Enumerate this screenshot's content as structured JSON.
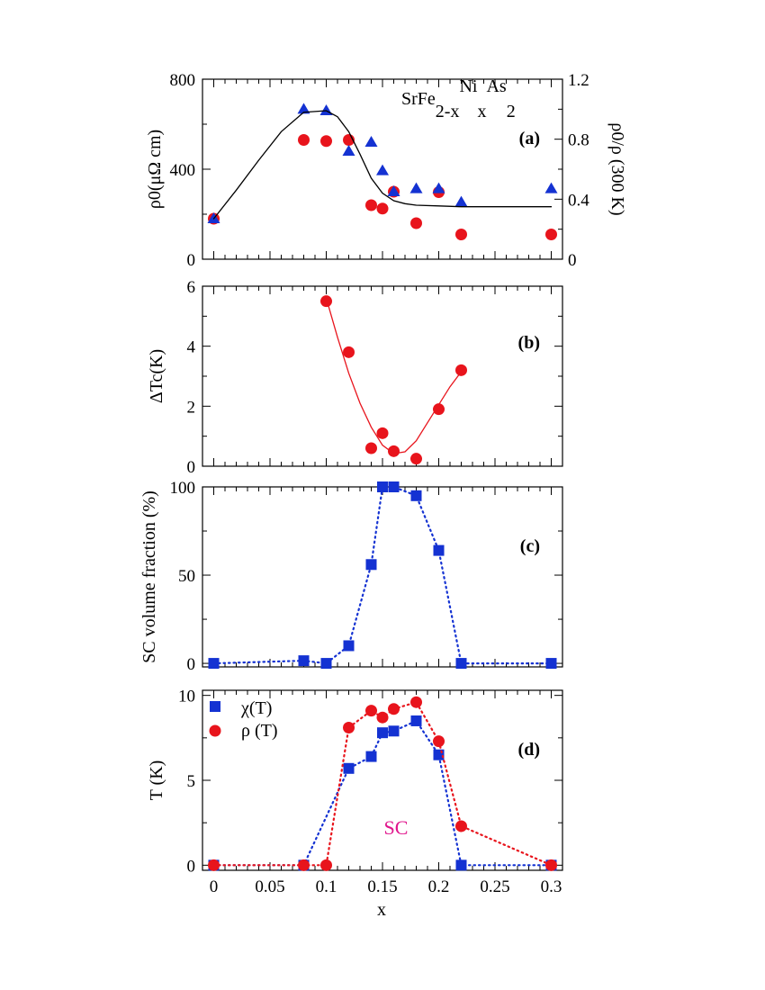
{
  "figure": {
    "formula": {
      "parts": [
        "SrFe",
        "2-x",
        "Ni",
        "x",
        "As",
        "2"
      ]
    },
    "xlabel": "x",
    "x_ticks": [
      "0",
      "0.05",
      "0.1",
      "0.15",
      "0.2",
      "0.25",
      "0.3"
    ]
  },
  "chart_data": [
    {
      "type": "scatter",
      "panel": "(a)",
      "ylabel": "ρ0(μΩ cm)",
      "ylabel_right": "ρ0/ρ (300 K)",
      "xlim": [
        -0.01,
        0.31
      ],
      "ylim": [
        0,
        800
      ],
      "ylim_right": [
        0,
        1.2
      ],
      "y_ticks": [
        "0",
        "400",
        "800"
      ],
      "y_ticks_right": [
        "0",
        "0.4",
        "0.8",
        "1.2"
      ],
      "series": [
        {
          "name": "ρ0",
          "axis": "left",
          "marker": "circle",
          "color": "#e8141c",
          "x": [
            0,
            0.08,
            0.1,
            0.12,
            0.14,
            0.15,
            0.16,
            0.18,
            0.2,
            0.22,
            0.3
          ],
          "y": [
            180,
            530,
            525,
            530,
            240,
            225,
            300,
            160,
            298,
            110,
            110
          ]
        },
        {
          "name": "ρ0/ρ (300 K)",
          "axis": "right",
          "marker": "triangle",
          "color": "#1432d2",
          "x": [
            0,
            0.08,
            0.1,
            0.12,
            0.14,
            0.15,
            0.16,
            0.18,
            0.2,
            0.22,
            0.3
          ],
          "y": [
            0.27,
            1.0,
            0.99,
            0.72,
            0.78,
            0.59,
            0.45,
            0.47,
            0.47,
            0.38,
            0.47
          ]
        },
        {
          "name": "guide",
          "axis": "right",
          "style": "line",
          "color": "#000000",
          "x": [
            0,
            0.02,
            0.04,
            0.06,
            0.08,
            0.1,
            0.11,
            0.12,
            0.13,
            0.14,
            0.15,
            0.16,
            0.17,
            0.18,
            0.2,
            0.22,
            0.25,
            0.3
          ],
          "y": [
            0.27,
            0.46,
            0.66,
            0.85,
            0.98,
            0.99,
            0.95,
            0.85,
            0.7,
            0.54,
            0.44,
            0.39,
            0.37,
            0.36,
            0.355,
            0.35,
            0.35,
            0.35
          ]
        }
      ]
    },
    {
      "type": "scatter",
      "panel": "(b)",
      "ylabel": "ΔTc(K)",
      "xlim": [
        -0.01,
        0.31
      ],
      "ylim": [
        0,
        6
      ],
      "y_ticks": [
        "0",
        "2",
        "4",
        "6"
      ],
      "series": [
        {
          "name": "ΔTc",
          "marker": "circle",
          "color": "#e8141c",
          "x": [
            0.1,
            0.12,
            0.14,
            0.15,
            0.16,
            0.18,
            0.2,
            0.22
          ],
          "y": [
            5.5,
            3.8,
            0.6,
            1.1,
            0.5,
            0.25,
            1.9,
            3.2
          ]
        },
        {
          "name": "fit",
          "style": "line",
          "color": "#e8141c",
          "x": [
            0.1,
            0.11,
            0.12,
            0.13,
            0.14,
            0.15,
            0.16,
            0.17,
            0.18,
            0.19,
            0.2,
            0.21,
            0.22
          ],
          "y": [
            5.6,
            4.3,
            3.1,
            2.1,
            1.3,
            0.7,
            0.42,
            0.48,
            0.85,
            1.45,
            2.05,
            2.65,
            3.15
          ]
        }
      ]
    },
    {
      "type": "scatter",
      "panel": "(c)",
      "ylabel": "SC volume fraction (%)",
      "xlim": [
        -0.01,
        0.31
      ],
      "ylim": [
        -2,
        100
      ],
      "y_ticks": [
        "0",
        "50",
        "100"
      ],
      "series": [
        {
          "name": "SC volume fraction",
          "marker": "square",
          "color": "#1432d2",
          "style": "dotted",
          "x": [
            0,
            0.08,
            0.1,
            0.12,
            0.14,
            0.15,
            0.16,
            0.18,
            0.2,
            0.22,
            0.3
          ],
          "y": [
            0,
            1.5,
            0,
            10,
            56,
            100,
            100,
            95,
            64,
            0,
            0
          ]
        }
      ]
    },
    {
      "type": "scatter",
      "panel": "(d)",
      "ylabel": "T (K)",
      "annotation": "SC",
      "xlim": [
        -0.01,
        0.31
      ],
      "ylim": [
        -0.3,
        10.3
      ],
      "y_ticks": [
        "0",
        "5",
        "10"
      ],
      "series": [
        {
          "name": "χ(T)",
          "marker": "square",
          "color": "#1432d2",
          "style": "dotted",
          "x": [
            0,
            0.08,
            0.12,
            0.14,
            0.15,
            0.16,
            0.18,
            0.2,
            0.22,
            0.3
          ],
          "y": [
            0,
            0,
            5.7,
            6.4,
            7.8,
            7.9,
            8.5,
            6.5,
            0,
            0
          ]
        },
        {
          "name": "ρ (T)",
          "marker": "circle",
          "color": "#e8141c",
          "style": "dotted",
          "x": [
            0,
            0.08,
            0.1,
            0.12,
            0.14,
            0.15,
            0.16,
            0.18,
            0.2,
            0.22,
            0.3
          ],
          "y": [
            0,
            0,
            0,
            8.1,
            9.1,
            8.7,
            9.2,
            9.6,
            7.3,
            2.3,
            0
          ]
        }
      ]
    }
  ]
}
